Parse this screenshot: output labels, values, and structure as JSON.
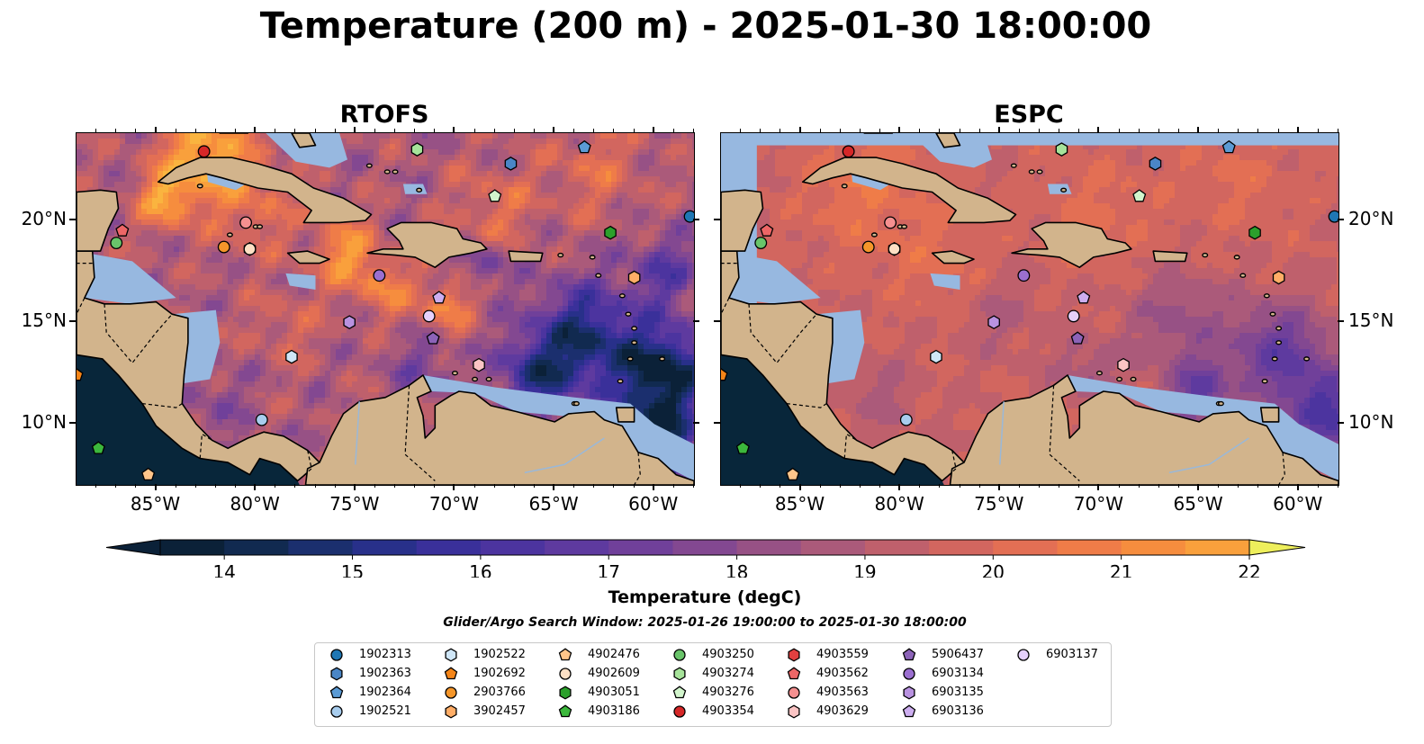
{
  "title": "Temperature (200 m) - 2025-01-30 18:00:00",
  "panels": [
    {
      "id": "rtofs",
      "title": "RTOFS"
    },
    {
      "id": "espc",
      "title": "ESPC"
    }
  ],
  "axes": {
    "lon_range": [
      -89,
      -58
    ],
    "lat_range": [
      7,
      24.3
    ],
    "lon_ticks": [
      -85,
      -80,
      -75,
      -70,
      -65,
      -60
    ],
    "lon_tick_labels": [
      "85°W",
      "80°W",
      "75°W",
      "70°W",
      "65°W",
      "60°W"
    ],
    "lat_ticks": [
      10,
      15,
      20
    ],
    "lat_tick_labels": [
      "10°N",
      "15°N",
      "20°N"
    ]
  },
  "colorbar": {
    "min": 13.5,
    "max": 22,
    "step": 0.5,
    "ticks": [
      14,
      15,
      16,
      17,
      18,
      19,
      20,
      21,
      22
    ],
    "tick_labels": [
      "14",
      "15",
      "16",
      "17",
      "18",
      "19",
      "20",
      "21",
      "22"
    ],
    "extend": "both",
    "label": "Temperature (degC)",
    "colors": [
      "#0b2138",
      "#112a50",
      "#1b2f6e",
      "#28308a",
      "#3a309a",
      "#4c349f",
      "#5e3a9f",
      "#70409a",
      "#834891",
      "#975185",
      "#ab5a7a",
      "#bf606c",
      "#d2665f",
      "#e36f54",
      "#ef7c48",
      "#f68d3e",
      "#f9a03c",
      "#fab43f",
      "#f8c746",
      "#f5db4f",
      "#eeef5c"
    ]
  },
  "colors": {
    "land": "#d2b48c",
    "shelf": "#97b8e0",
    "pacific": "#08263a",
    "coast": "#000000",
    "marker_edge": "#000000"
  },
  "search_window": "Glider/Argo Search Window: 2025-01-26 19:00:00 to 2025-01-30 18:00:00",
  "legend": [
    {
      "id": "1902313",
      "shape": "circle",
      "color": "#1f77b4"
    },
    {
      "id": "1902363",
      "shape": "hexagon",
      "color": "#4a86c6"
    },
    {
      "id": "1902364",
      "shape": "pentagon",
      "color": "#5b9bd5"
    },
    {
      "id": "1902521",
      "shape": "circle",
      "color": "#a8cdee"
    },
    {
      "id": "1902522",
      "shape": "hexagon",
      "color": "#cfe6f7"
    },
    {
      "id": "1902692",
      "shape": "pentagon",
      "color": "#f58518"
    },
    {
      "id": "2903766",
      "shape": "circle",
      "color": "#f5962a"
    },
    {
      "id": "3902457",
      "shape": "hexagon",
      "color": "#ffad66"
    },
    {
      "id": "4902476",
      "shape": "pentagon",
      "color": "#ffc58a"
    },
    {
      "id": "4902609",
      "shape": "circle",
      "color": "#fde0c5"
    },
    {
      "id": "4903051",
      "shape": "hexagon",
      "color": "#2ca02c"
    },
    {
      "id": "4903186",
      "shape": "pentagon",
      "color": "#3cb83c"
    },
    {
      "id": "4903250",
      "shape": "circle",
      "color": "#69c46a"
    },
    {
      "id": "4903274",
      "shape": "hexagon",
      "color": "#a6e39a"
    },
    {
      "id": "4903276",
      "shape": "pentagon",
      "color": "#d2f5cc"
    },
    {
      "id": "4903354",
      "shape": "circle",
      "color": "#d62728"
    },
    {
      "id": "4903559",
      "shape": "hexagon",
      "color": "#e04040"
    },
    {
      "id": "4903562",
      "shape": "pentagon",
      "color": "#ee6666"
    },
    {
      "id": "4903563",
      "shape": "circle",
      "color": "#f59090"
    },
    {
      "id": "4903629",
      "shape": "hexagon",
      "color": "#fbc4c4"
    },
    {
      "id": "5906437",
      "shape": "pentagon",
      "color": "#8c63b8"
    },
    {
      "id": "6903134",
      "shape": "circle",
      "color": "#9b6fd0"
    },
    {
      "id": "6903135",
      "shape": "hexagon",
      "color": "#b992e0"
    },
    {
      "id": "6903136",
      "shape": "pentagon",
      "color": "#cdaef0"
    },
    {
      "id": "6903137",
      "shape": "circle",
      "color": "#e5d0fb"
    }
  ],
  "platform_locations": [
    {
      "id": "1902313",
      "lon": -58.2,
      "lat": 20.2
    },
    {
      "id": "1902364",
      "lon": -63.5,
      "lat": 23.6
    },
    {
      "id": "1902363",
      "lon": -67.2,
      "lat": 22.8
    },
    {
      "id": "4903274",
      "lon": -71.9,
      "lat": 23.5
    },
    {
      "id": "4903276",
      "lon": -68.0,
      "lat": 21.2
    },
    {
      "id": "4903354",
      "lon": -82.6,
      "lat": 23.4
    },
    {
      "id": "4903563",
      "lon": -80.5,
      "lat": 19.9
    },
    {
      "id": "2903766",
      "lon": -81.6,
      "lat": 18.7
    },
    {
      "id": "4903559",
      "lon": -80.3,
      "lat": 18.6
    },
    {
      "id": "4902609",
      "lon": -80.3,
      "lat": 18.6
    },
    {
      "id": "4903562",
      "lon": -86.7,
      "lat": 19.5
    },
    {
      "id": "4903250",
      "lon": -87.0,
      "lat": 18.9
    },
    {
      "id": "4903051",
      "lon": -62.2,
      "lat": 19.4
    },
    {
      "id": "3902457",
      "lon": -61.0,
      "lat": 17.2
    },
    {
      "id": "4903629",
      "lon": -68.8,
      "lat": 12.9
    },
    {
      "id": "6903134",
      "lon": -73.8,
      "lat": 17.3
    },
    {
      "id": "6903135",
      "lon": -75.3,
      "lat": 15.0
    },
    {
      "id": "6903136",
      "lon": -70.8,
      "lat": 16.2
    },
    {
      "id": "6903137",
      "lon": -71.3,
      "lat": 15.3
    },
    {
      "id": "5906437",
      "lon": -71.1,
      "lat": 14.2
    },
    {
      "id": "1902522",
      "lon": -78.2,
      "lat": 13.3
    },
    {
      "id": "1902521",
      "lon": -79.7,
      "lat": 10.2
    },
    {
      "id": "1902692",
      "lon": -89.0,
      "lat": 12.4
    },
    {
      "id": "4903186",
      "lon": -87.9,
      "lat": 8.8
    },
    {
      "id": "4902476",
      "lon": -85.4,
      "lat": 7.5
    }
  ],
  "fields": {
    "rtofs": {
      "base": 18.8,
      "blobs": [
        {
          "lon": -82.5,
          "lat": 23.3,
          "dt": 3.5,
          "r": 2.2
        },
        {
          "lon": -84.5,
          "lat": 21.0,
          "dt": 2.8,
          "r": 1.4
        },
        {
          "lon": -80.0,
          "lat": 20.4,
          "dt": 1.5,
          "r": 2.0
        },
        {
          "lon": -75.5,
          "lat": 18.4,
          "dt": 2.6,
          "r": 1.6
        },
        {
          "lon": -73.5,
          "lat": 16.7,
          "dt": 2.0,
          "r": 1.4
        },
        {
          "lon": -70.5,
          "lat": 15.8,
          "dt": 2.2,
          "r": 1.3
        },
        {
          "lon": -68.0,
          "lat": 20.7,
          "dt": 1.4,
          "r": 2.0
        },
        {
          "lon": -63.0,
          "lat": 22.6,
          "dt": 1.3,
          "r": 2.5
        },
        {
          "lon": -78.5,
          "lat": 14.8,
          "dt": 1.0,
          "r": 1.8
        },
        {
          "lon": -68.5,
          "lat": 17.8,
          "dt": -1.8,
          "r": 1.0
        },
        {
          "lon": -63.5,
          "lat": 14.2,
          "dt": -4.0,
          "r": 2.6
        },
        {
          "lon": -59.5,
          "lat": 12.5,
          "dt": -5.0,
          "r": 2.2
        },
        {
          "lon": -66.0,
          "lat": 12.3,
          "dt": -3.0,
          "r": 1.8
        },
        {
          "lon": -71.5,
          "lat": 12.8,
          "dt": -1.3,
          "r": 1.5
        },
        {
          "lon": -59.5,
          "lat": 17.5,
          "dt": -2.0,
          "r": 1.8
        },
        {
          "lon": -60.0,
          "lat": 9.0,
          "dt": -5.0,
          "r": 2.0
        },
        {
          "lon": -82.0,
          "lat": 11.0,
          "dt": -0.8,
          "r": 1.8
        },
        {
          "lon": -66.0,
          "lat": 10.7,
          "dt": 1.6,
          "r": 0.5
        }
      ]
    },
    "espc": {
      "base": 19.5,
      "blobs": [
        {
          "lon": -82.0,
          "lat": 21.5,
          "dt": 0.9,
          "r": 3.0
        },
        {
          "lon": -78.0,
          "lat": 18.0,
          "dt": 0.7,
          "r": 2.5
        },
        {
          "lon": -70.0,
          "lat": 20.5,
          "dt": 0.6,
          "r": 3.0
        },
        {
          "lon": -63.0,
          "lat": 22.0,
          "dt": 0.6,
          "r": 3.0
        },
        {
          "lon": -66.0,
          "lat": 15.0,
          "dt": -1.2,
          "r": 2.5
        },
        {
          "lon": -61.0,
          "lat": 13.5,
          "dt": -2.5,
          "r": 2.4
        },
        {
          "lon": -58.5,
          "lat": 10.5,
          "dt": -3.0,
          "r": 2.2
        },
        {
          "lon": -65.0,
          "lat": 11.5,
          "dt": -2.4,
          "r": 1.6
        },
        {
          "lon": -70.5,
          "lat": 12.5,
          "dt": -1.0,
          "r": 1.6
        },
        {
          "lon": -75.0,
          "lat": 15.5,
          "dt": -0.6,
          "r": 2.0
        },
        {
          "lon": -81.0,
          "lat": 11.5,
          "dt": -0.7,
          "r": 1.8
        }
      ]
    }
  }
}
